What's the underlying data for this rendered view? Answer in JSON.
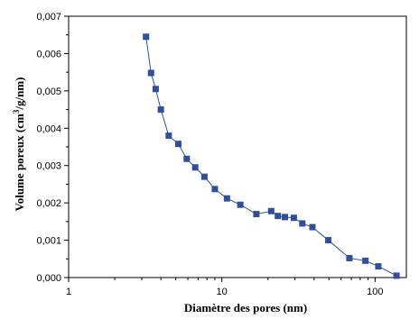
{
  "chart_data": {
    "type": "line",
    "xlabel": "Diamètre des pores (nm)",
    "ylabel": {
      "prefix": "Volume poreux (cm",
      "superscript": "3",
      "suffix": "/g/nm)"
    },
    "x_scale": "log",
    "xlim": [
      1,
      160
    ],
    "ylim": [
      0,
      0.007
    ],
    "x_ticks": [
      {
        "value": 1,
        "label": "1"
      },
      {
        "value": 10,
        "label": "10"
      },
      {
        "value": 100,
        "label": "100"
      }
    ],
    "y_ticks": [
      {
        "value": 0,
        "label": "0,000"
      },
      {
        "value": 0.001,
        "label": "0,001"
      },
      {
        "value": 0.002,
        "label": "0,002"
      },
      {
        "value": 0.003,
        "label": "0,003"
      },
      {
        "value": 0.004,
        "label": "0,004"
      },
      {
        "value": 0.005,
        "label": "0,005"
      },
      {
        "value": 0.006,
        "label": "0,006"
      },
      {
        "value": 0.007,
        "label": "0,007"
      }
    ],
    "grid": false,
    "color": "#2E4FA0",
    "marker": "square",
    "series": [
      {
        "x": [
          3.2,
          3.45,
          3.7,
          4.0,
          4.5,
          5.2,
          5.9,
          6.7,
          7.7,
          9.0,
          10.8,
          13.2,
          16.8,
          21.0,
          23.2,
          25.8,
          29.5,
          33.5,
          39.0,
          49.5,
          68.0,
          86.5,
          105.0,
          138.0
        ],
        "y": [
          0.00645,
          0.00548,
          0.00505,
          0.0045,
          0.0038,
          0.00358,
          0.00318,
          0.00295,
          0.0027,
          0.00237,
          0.00212,
          0.00195,
          0.0017,
          0.00178,
          0.00165,
          0.00162,
          0.0016,
          0.00145,
          0.00135,
          0.001,
          0.00052,
          0.00045,
          0.0003,
          5e-05
        ]
      }
    ]
  }
}
